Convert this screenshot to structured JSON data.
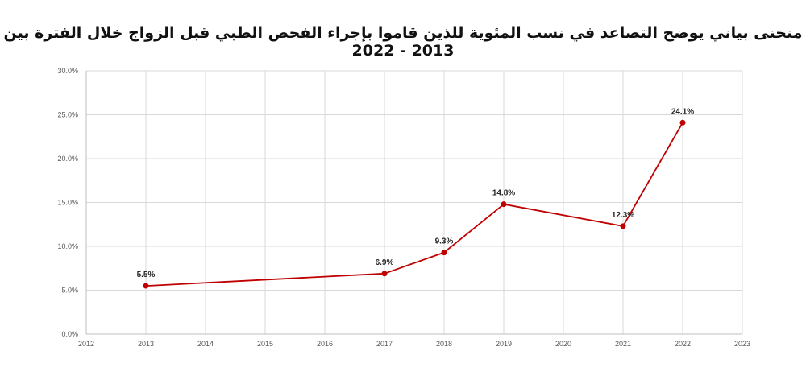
{
  "colors": {
    "series": "#c00000",
    "grid": "#d9d9d9",
    "axis": "#bfbfbf"
  },
  "chart_data": {
    "type": "scatter",
    "title": "منحنى بياني يوضح التصاعد في نسب المئوية للذين قاموا بإجراء الفحص الطبي قبل الزواج خلال الفترة بين 2013 - 2022",
    "xlabel": "",
    "ylabel": "",
    "xlim": [
      2012,
      2023
    ],
    "ylim": [
      0,
      30
    ],
    "x_ticks": [
      "2012",
      "2013",
      "2014",
      "2015",
      "2016",
      "2017",
      "2018",
      "2019",
      "2020",
      "2021",
      "2022",
      "2023"
    ],
    "y_ticks": [
      "0.0%",
      "5.0%",
      "10.0%",
      "15.0%",
      "20.0%",
      "25.0%",
      "30.0%"
    ],
    "grid": true,
    "legend": "none",
    "series": [
      {
        "name": "percentage",
        "x": [
          2013,
          2017,
          2018,
          2019,
          2021,
          2022
        ],
        "y": [
          5.5,
          6.9,
          9.3,
          14.8,
          12.3,
          24.1
        ],
        "labels": [
          "5.5%",
          "6.9%",
          "9.3%",
          "14.8%",
          "12.3%",
          "24.1%"
        ]
      }
    ]
  }
}
